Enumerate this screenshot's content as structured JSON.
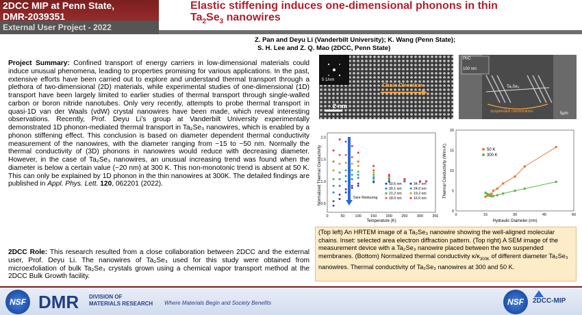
{
  "header": {
    "line1": "2DCC MIP at Penn State,",
    "line2": "DMR-2039351",
    "subtitle": "External User Project - 2022",
    "title_part1": "Elastic stiffening induces one-dimensional phonons in thin",
    "title_part2": "Ta",
    "title_sub2": "2",
    "title_part3": "Se",
    "title_sub3": "3",
    "title_part4": " nanowires",
    "authors_line1": "Z. Pan and Deyu Li (Vanderbilt University); K. Wang (Penn State);",
    "authors_line2": "S. H. Lee and Z. Q. Mao (2DCC, Penn State)"
  },
  "summary": {
    "label": "Project Summary:",
    "text": " Confined transport of energy carriers in low-dimensional materials could induce unusual phenomena, leading to properties promising for various applications. In the past, extensive efforts have been carried out to explore and understand thermal transport through a plethora of two-dimensional (2D) materials, while experimental studies of one-dimensional (1D) transport have been largely limited to earlier studies of thermal transport through single-walled carbon or boron nitride nanotubes. Only very recently, attempts to probe thermal transport in quasi-1D van der Waals (vdW) crystal nanowires have been made, which reveal interesting observations. Recently, Prof. Deyu Li’s group at Vanderbilt University experimentally demonstrated 1D phonon-mediated thermal transport in Ta₂Se₃ nanowires, which is enabled by a phonon stiffening effect. This conclusion is based on diameter dependent thermal conductivity measurement of the nanowires, with the diameter ranging from ~15 to ~50 nm. Normally the thermal conductivity of (3D) phonons in nanowires would reduce with decreasing diameter. However, in the case of Ta₂Se₃ nanowires, an unusual increasing trend was found when the diameter is below a certain value (~20 nm) at 300 K. This non-monotonic trend is absent at 50 K. This can only be explained by 1D phonon in the thin nanowires at 300K. The detailed findings are published in ",
    "journal": "Appl. Phys. Lett.",
    "volume": " 120",
    "pages": ", 062201 (2022)."
  },
  "role": {
    "label": "2DCC Role:",
    "text": " This research resulted from a close collaboration between 2DCC and the external user, Prof. Deyu Li. The nanowires of Ta₂Se₃ used for this study were obtained from microexfoliation of bulk Ta₂Se₃ crystals grown using a chemical vapor transport method at the 2DCC Bulk Growth facility."
  },
  "images": {
    "tl_scale1": "5 1/nm",
    "tl_scale2": "2 nm",
    "tl_label": "Chain Direction",
    "tr_label1": "Pt/C",
    "tr_label2": "100 nm",
    "tr_label3": "Ta₂Se₃",
    "tr_label4": "suspended membranes",
    "tr_label5": "5μm"
  },
  "chart_left": {
    "ylabel": "Normalized Thermal Conductivity",
    "xlabel": "Temperature (K)",
    "xticks": [
      "0",
      "50",
      "100",
      "150",
      "200",
      "250",
      "300",
      "350"
    ],
    "yticks": [
      "0.5",
      "1.0",
      "1.5",
      "2.0"
    ],
    "annotation": "Size Reducing",
    "legend": [
      "50.6 nm",
      "34.7 nm",
      "30.1 nm",
      "24.0 nm",
      "21.2 nm",
      "19.2 nm",
      "18.0 nm",
      "16.0 nm"
    ]
  },
  "chart_right": {
    "ylabel": "Thermal Conductivity (W/m-K)",
    "xlabel": "Hydraulic Diameter (nm)",
    "xticks": [
      "0",
      "15",
      "30",
      "45",
      "60"
    ],
    "yticks": [
      "0",
      "5",
      "10",
      "15",
      "20"
    ],
    "legend": [
      "50 K",
      "300 K"
    ]
  },
  "chart_data": [
    {
      "type": "scatter",
      "xlabel": "Temperature (K)",
      "ylabel": "Normalized Thermal Conductivity",
      "xlim": [
        0,
        350
      ],
      "ylim": [
        0.3,
        2.1
      ],
      "series": [
        {
          "name": "50.6 nm",
          "color": "#2b4bc0",
          "x": [
            20,
            40,
            60,
            80,
            100,
            150,
            200,
            250,
            300,
            320
          ],
          "y": [
            0.45,
            0.6,
            0.75,
            0.85,
            0.9,
            0.98,
            1.0,
            1.0,
            1.0,
            1.0
          ]
        },
        {
          "name": "34.7 nm",
          "color": "#6a2fb0",
          "x": [
            20,
            40,
            60,
            80,
            100,
            150,
            200,
            250,
            300,
            320
          ],
          "y": [
            0.55,
            0.7,
            0.82,
            0.9,
            0.95,
            1.0,
            1.0,
            1.0,
            1.0,
            1.0
          ]
        },
        {
          "name": "30.1 nm",
          "color": "#1a8fd0",
          "x": [
            20,
            40,
            60,
            80,
            100,
            150,
            200,
            250,
            300,
            320
          ],
          "y": [
            0.75,
            0.9,
            1.0,
            1.05,
            1.08,
            1.06,
            1.03,
            1.01,
            1.0,
            1.0
          ]
        },
        {
          "name": "24.0 nm",
          "color": "#20a8a0",
          "x": [
            20,
            40,
            60,
            80,
            100,
            150,
            200,
            250,
            300,
            320
          ],
          "y": [
            0.9,
            1.05,
            1.12,
            1.15,
            1.15,
            1.1,
            1.05,
            1.02,
            1.0,
            1.0
          ]
        },
        {
          "name": "21.2 nm",
          "color": "#4cb050",
          "x": [
            20,
            40,
            60,
            80,
            100,
            150,
            200,
            250,
            300,
            320
          ],
          "y": [
            1.05,
            1.2,
            1.25,
            1.25,
            1.22,
            1.15,
            1.08,
            1.03,
            1.0,
            1.0
          ]
        },
        {
          "name": "19.2 nm",
          "color": "#d0a020",
          "x": [
            20,
            40,
            60,
            80,
            100,
            150,
            200,
            250,
            300,
            320
          ],
          "y": [
            1.25,
            1.4,
            1.42,
            1.4,
            1.35,
            1.2,
            1.1,
            1.04,
            1.0,
            1.0
          ]
        },
        {
          "name": "18.0 nm",
          "color": "#e06030",
          "x": [
            20,
            40,
            60,
            80,
            100,
            150,
            200,
            250,
            300,
            320
          ],
          "y": [
            1.45,
            1.6,
            1.6,
            1.55,
            1.45,
            1.25,
            1.12,
            1.05,
            1.0,
            1.0
          ]
        },
        {
          "name": "16.0 nm",
          "color": "#e0306a",
          "x": [
            20,
            40,
            60,
            80,
            100,
            150,
            200,
            250,
            300,
            320
          ],
          "y": [
            1.7,
            1.95,
            1.9,
            1.8,
            1.65,
            1.35,
            1.15,
            1.05,
            1.0,
            1.0
          ]
        }
      ]
    },
    {
      "type": "scatter",
      "xlabel": "Hydraulic Diameter (nm)",
      "ylabel": "Thermal Conductivity (W/m-K)",
      "xlim": [
        0,
        60
      ],
      "ylim": [
        0,
        20
      ],
      "series": [
        {
          "name": "50 K",
          "color": "#e87a3a",
          "x": [
            15,
            16,
            17,
            18,
            19,
            21,
            24,
            30,
            35,
            51
          ],
          "y": [
            3.5,
            3.8,
            4.0,
            4.2,
            5.0,
            5.5,
            6.8,
            8.5,
            11.0,
            15.8
          ]
        },
        {
          "name": "300 K",
          "color": "#5bb84a",
          "x": [
            15,
            16,
            17,
            18,
            19,
            21,
            24,
            30,
            35,
            51
          ],
          "y": [
            4.5,
            4.2,
            3.8,
            3.6,
            3.7,
            3.9,
            4.3,
            5.0,
            5.5,
            7.2
          ]
        }
      ]
    }
  ],
  "caption": {
    "text": "(Top left) An HRTEM image of a Ta₂Se₃ nanowire showing the well-aligned molecular chains. Inset: selected area electron diffraction pattern. (Top right) A  SEM image of the measurement device with a Ta₂Se₃ nanowire placed between the two suspended membranes. (Bottom) Normalized thermal conductivity κ/κ",
    "sub": "300K",
    "text2": " of different diameter Ta₂Se₃ nanowires. Thermal conductivity of Ta₂Se₃ nanowires at 300 and 50 K."
  },
  "footer": {
    "nsf": "NSF",
    "dmr": "DMR",
    "dmr_sub1": "DIVISION OF",
    "dmr_sub2": "MATERIALS RESEARCH",
    "slogan": "Where Materials Begin and Society Benefits",
    "mip": "2DCC-MIP"
  }
}
